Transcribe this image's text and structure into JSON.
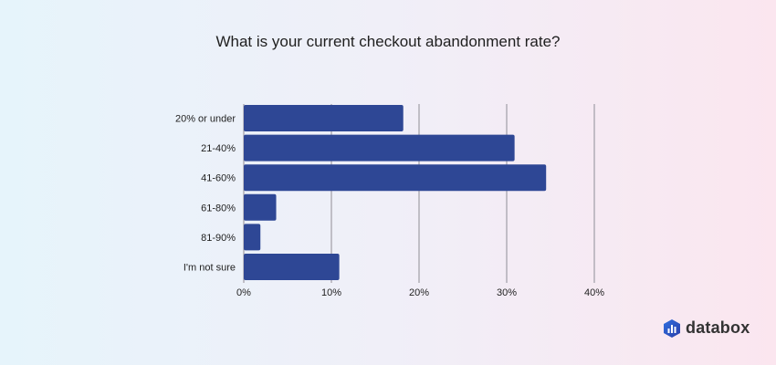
{
  "chart_data": {
    "type": "bar",
    "orientation": "horizontal",
    "title": "What is your current checkout abandonment rate?",
    "categories": [
      "20% or under",
      "21-40%",
      "41-60%",
      "61-80%",
      "81-90%",
      "I'm not sure"
    ],
    "values": [
      18.2,
      30.9,
      34.5,
      3.7,
      1.9,
      10.9
    ],
    "unit": "%",
    "xlim": [
      0,
      40
    ],
    "xticks": [
      "0%",
      "10%",
      "20%",
      "30%",
      "40%"
    ],
    "grid": "vertical",
    "bar_color": "#2e4795",
    "grid_color": "#b0adb6"
  },
  "branding": {
    "logo_text": "databox"
  }
}
